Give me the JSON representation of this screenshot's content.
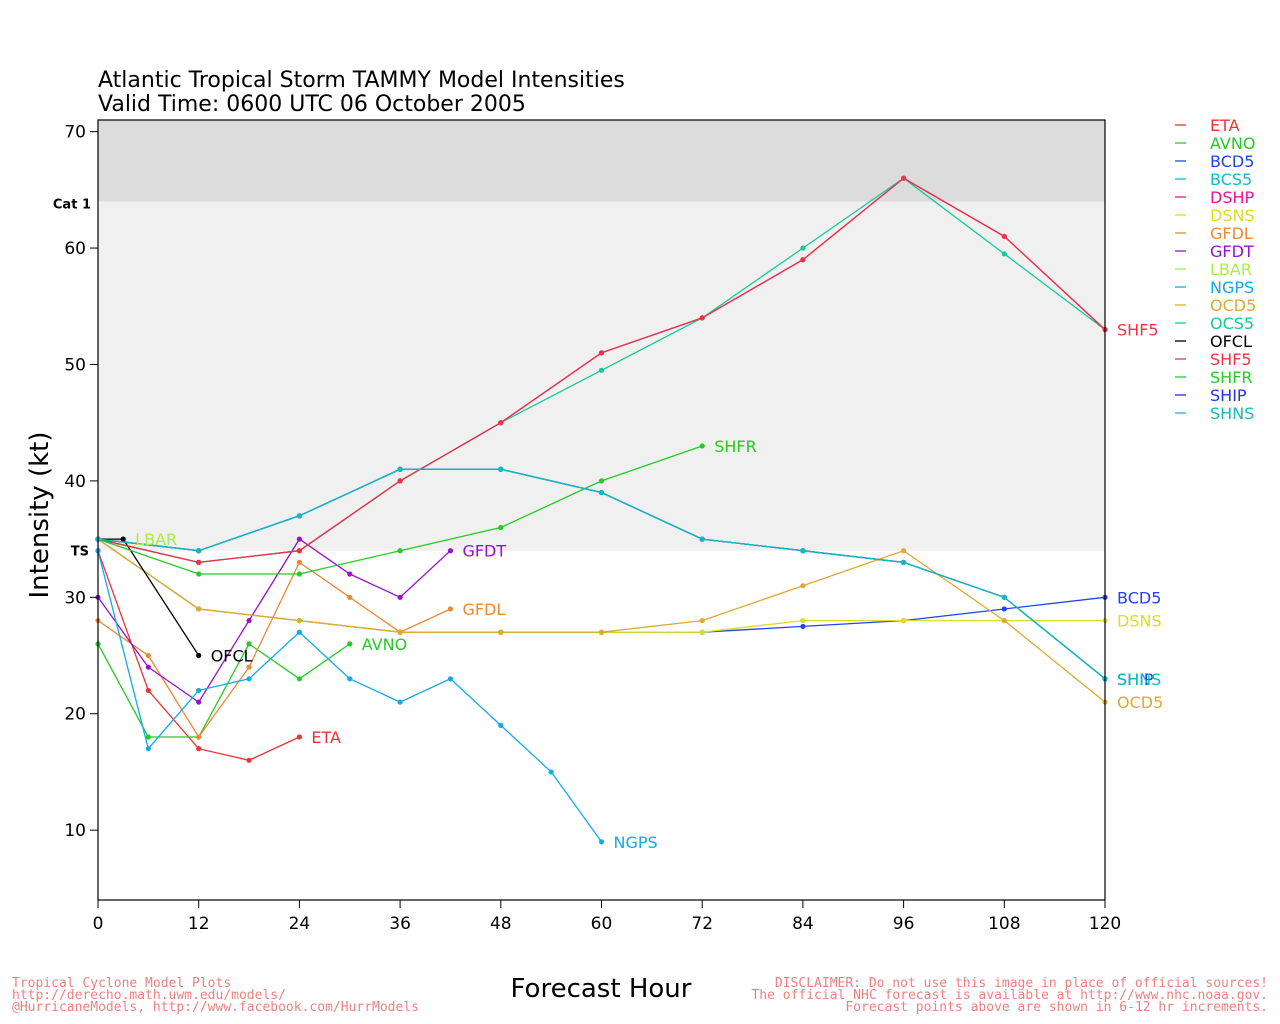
{
  "chart_data": {
    "type": "line",
    "title": "Atlantic Tropical Storm TAMMY Model Intensities",
    "subtitle": "Valid Time: 0600 UTC 06 October 2005",
    "xlabel": "Forecast Hour",
    "ylabel": "Intensity (kt)",
    "xlim": [
      0,
      120
    ],
    "ylim": [
      4,
      71
    ],
    "xticks": [
      0,
      12,
      24,
      36,
      48,
      60,
      72,
      84,
      96,
      108,
      120
    ],
    "yticks": [
      10,
      20,
      30,
      40,
      50,
      60,
      70
    ],
    "bands": [
      {
        "label": "TS",
        "from": 34,
        "to": 64,
        "color": "#f0f0f0"
      },
      {
        "label": "Cat 1",
        "from": 64,
        "to": 71,
        "color": "#dcdcdc"
      }
    ],
    "legend_position": "right",
    "series": [
      {
        "name": "ETA",
        "color": "#ee3333",
        "label_text": "ETA",
        "x": [
          0,
          6,
          12,
          18,
          24
        ],
        "y": [
          34,
          22,
          17,
          16,
          18
        ]
      },
      {
        "name": "AVNO",
        "color": "#22cc22",
        "label_text": "AVNO",
        "x": [
          0,
          6,
          12,
          18,
          24,
          30
        ],
        "y": [
          26,
          18,
          18,
          26,
          23,
          26
        ]
      },
      {
        "name": "BCD5",
        "color": "#2244ee",
        "label_text": "BCD5",
        "x": [
          0,
          12,
          24,
          36,
          48,
          60,
          72,
          84,
          96,
          108,
          120
        ],
        "y": [
          35,
          29,
          28,
          27,
          27,
          27,
          27,
          27.5,
          28,
          29,
          30
        ]
      },
      {
        "name": "BCS5",
        "color": "#11bbcc",
        "label_text": "",
        "x": [
          0,
          12,
          24,
          36,
          48,
          60,
          72,
          84,
          96,
          108,
          120
        ],
        "y": [
          35,
          34,
          37,
          41,
          41,
          39,
          35,
          34,
          33,
          30,
          23
        ]
      },
      {
        "name": "DSHP",
        "color": "#ee1199",
        "label_text": "",
        "x": [
          0,
          12,
          24,
          36,
          48,
          60,
          72,
          84,
          96,
          108,
          120
        ],
        "y": [
          35,
          33,
          34,
          40,
          45,
          51,
          54,
          59,
          66,
          61,
          53
        ]
      },
      {
        "name": "DSNS",
        "color": "#dddd22",
        "label_text": "DSNS",
        "x": [
          0,
          12,
          24,
          36,
          48,
          60,
          72,
          84,
          96,
          108,
          120
        ],
        "y": [
          35,
          29,
          28,
          27,
          27,
          27,
          27,
          28,
          28,
          28,
          28
        ]
      },
      {
        "name": "GFDL",
        "color": "#ee8833",
        "label_text": "GFDL",
        "x": [
          0,
          6,
          12,
          18,
          24,
          30,
          36,
          42
        ],
        "y": [
          28,
          25,
          18,
          24,
          33,
          30,
          27,
          29
        ]
      },
      {
        "name": "GFDT",
        "color": "#9911cc",
        "label_text": "GFDT",
        "x": [
          0,
          6,
          12,
          18,
          24,
          30,
          36,
          42
        ],
        "y": [
          30,
          24,
          21,
          28,
          35,
          32,
          30,
          34
        ]
      },
      {
        "name": "LBAR",
        "color": "#aaee44",
        "label_text": "LBAR",
        "x": [
          0,
          3
        ],
        "y": [
          35,
          35
        ]
      },
      {
        "name": "NGPS",
        "color": "#11aaee",
        "label_text": "NGPS",
        "x": [
          0,
          6,
          12,
          18,
          24,
          30,
          36,
          42,
          48,
          54,
          60
        ],
        "y": [
          34,
          17,
          22,
          23,
          27,
          23,
          21,
          23,
          19,
          15,
          9
        ]
      },
      {
        "name": "OCD5",
        "color": "#ddaa33",
        "label_text": "OCD5",
        "x": [
          0,
          12,
          24,
          36,
          48,
          60,
          72,
          84,
          96,
          108,
          120
        ],
        "y": [
          35,
          29,
          28,
          27,
          27,
          27,
          28,
          31,
          34,
          28,
          21
        ]
      },
      {
        "name": "OCS5",
        "color": "#11cc99",
        "label_text": "",
        "x": [
          0,
          12,
          24,
          36,
          48,
          60,
          72,
          84,
          96,
          108,
          120
        ],
        "y": [
          35,
          33,
          34,
          40,
          45,
          49.5,
          54,
          60,
          66,
          59.5,
          53
        ]
      },
      {
        "name": "OFCL",
        "color": "#000000",
        "label_text": "OFCL",
        "x": [
          0,
          3,
          12
        ],
        "y": [
          35,
          35,
          25
        ]
      },
      {
        "name": "SHF5",
        "color": "#ee3344",
        "label_text": "SHF5",
        "x": [
          0,
          12,
          24,
          36,
          48,
          60,
          72,
          84,
          96,
          108,
          120
        ],
        "y": [
          35,
          33,
          34,
          40,
          45,
          51,
          54,
          59,
          66,
          61,
          53
        ]
      },
      {
        "name": "SHFR",
        "color": "#22cc22",
        "label_text": "SHFR",
        "x": [
          0,
          12,
          24,
          36,
          48,
          60,
          72
        ],
        "y": [
          35,
          32,
          32,
          34,
          36,
          40,
          43
        ]
      },
      {
        "name": "SHIP",
        "color": "#2233ee",
        "label_text": "SHIP",
        "x": [
          0,
          12,
          24,
          36,
          48,
          60,
          72,
          84,
          96,
          108,
          120
        ],
        "y": [
          35,
          34,
          37,
          41,
          41,
          39,
          35,
          34,
          33,
          30,
          23
        ]
      },
      {
        "name": "SHNS",
        "color": "#11bbbb",
        "label_text": "SHNS",
        "x": [
          0,
          12,
          24,
          36,
          48,
          60,
          72,
          84,
          96,
          108,
          120
        ],
        "y": [
          35,
          34,
          37,
          41,
          41,
          39,
          35,
          34,
          33,
          30,
          23
        ]
      }
    ]
  },
  "footer": {
    "left": [
      "Tropical Cyclone Model Plots",
      "http://derecho.math.uwm.edu/models/",
      "@HurricaneModels, http://www.facebook.com/HurrModels"
    ],
    "right": [
      "DISCLAIMER: Do not use this image in place of official sources!",
      "The official NHC forecast is available at http://www.nhc.noaa.gov.",
      "Forecast points above are shown in 6-12 hr increments."
    ]
  }
}
